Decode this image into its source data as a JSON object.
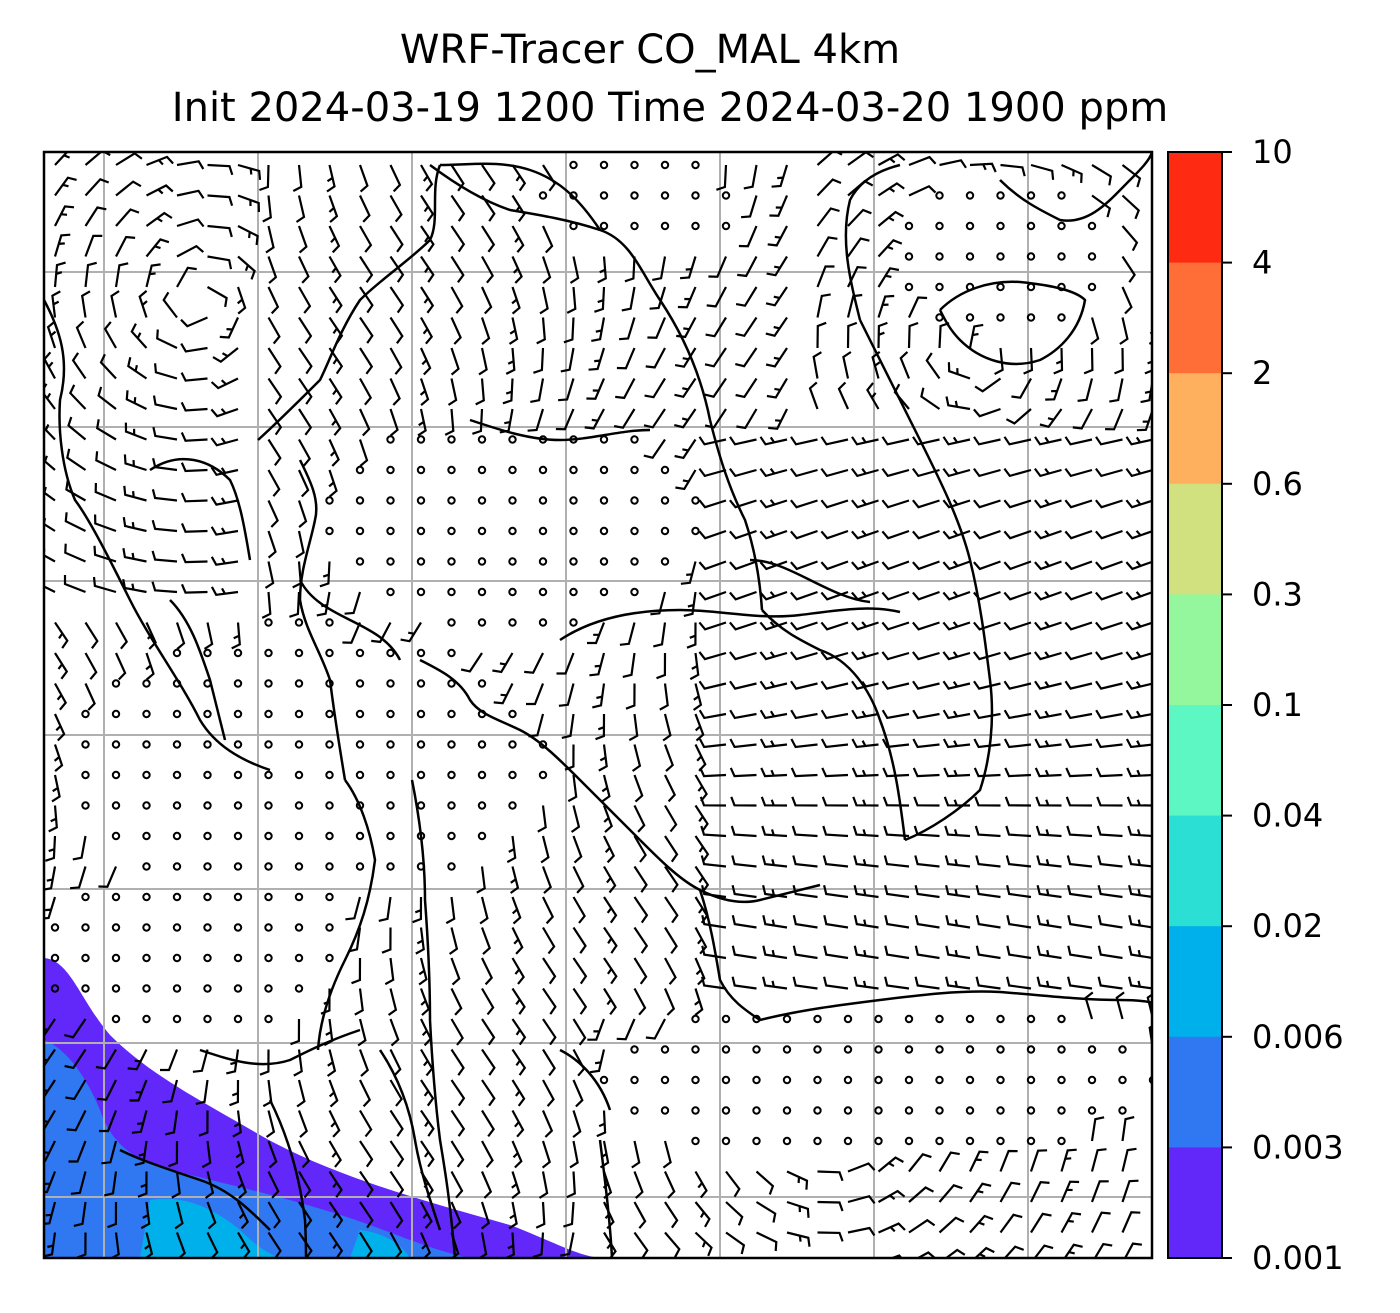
{
  "title": {
    "line1": "WRF-Tracer CO_MAL 4km",
    "line2": "Init 2024-03-19 1200 Time 2024-03-20 1900 ppm"
  },
  "colorbar": {
    "ticks": [
      "10",
      "4",
      "2",
      "0.6",
      "0.3",
      "0.1",
      "0.04",
      "0.02",
      "0.006",
      "0.003",
      "0.001"
    ],
    "colors": [
      "#ff2a12",
      "#ff6e36",
      "#ffb05f",
      "#d2e17f",
      "#94f79e",
      "#5cf7c2",
      "#2cdfd4",
      "#00b0ea",
      "#3078f2",
      "#6228fa"
    ]
  },
  "map": {
    "field": "CO_MAL tracer",
    "overlays": [
      "wind barbs",
      "coastlines",
      "gridlines"
    ],
    "filled_region_colors": [
      "#6228fa",
      "#3078f2",
      "#00b0ea"
    ]
  }
}
